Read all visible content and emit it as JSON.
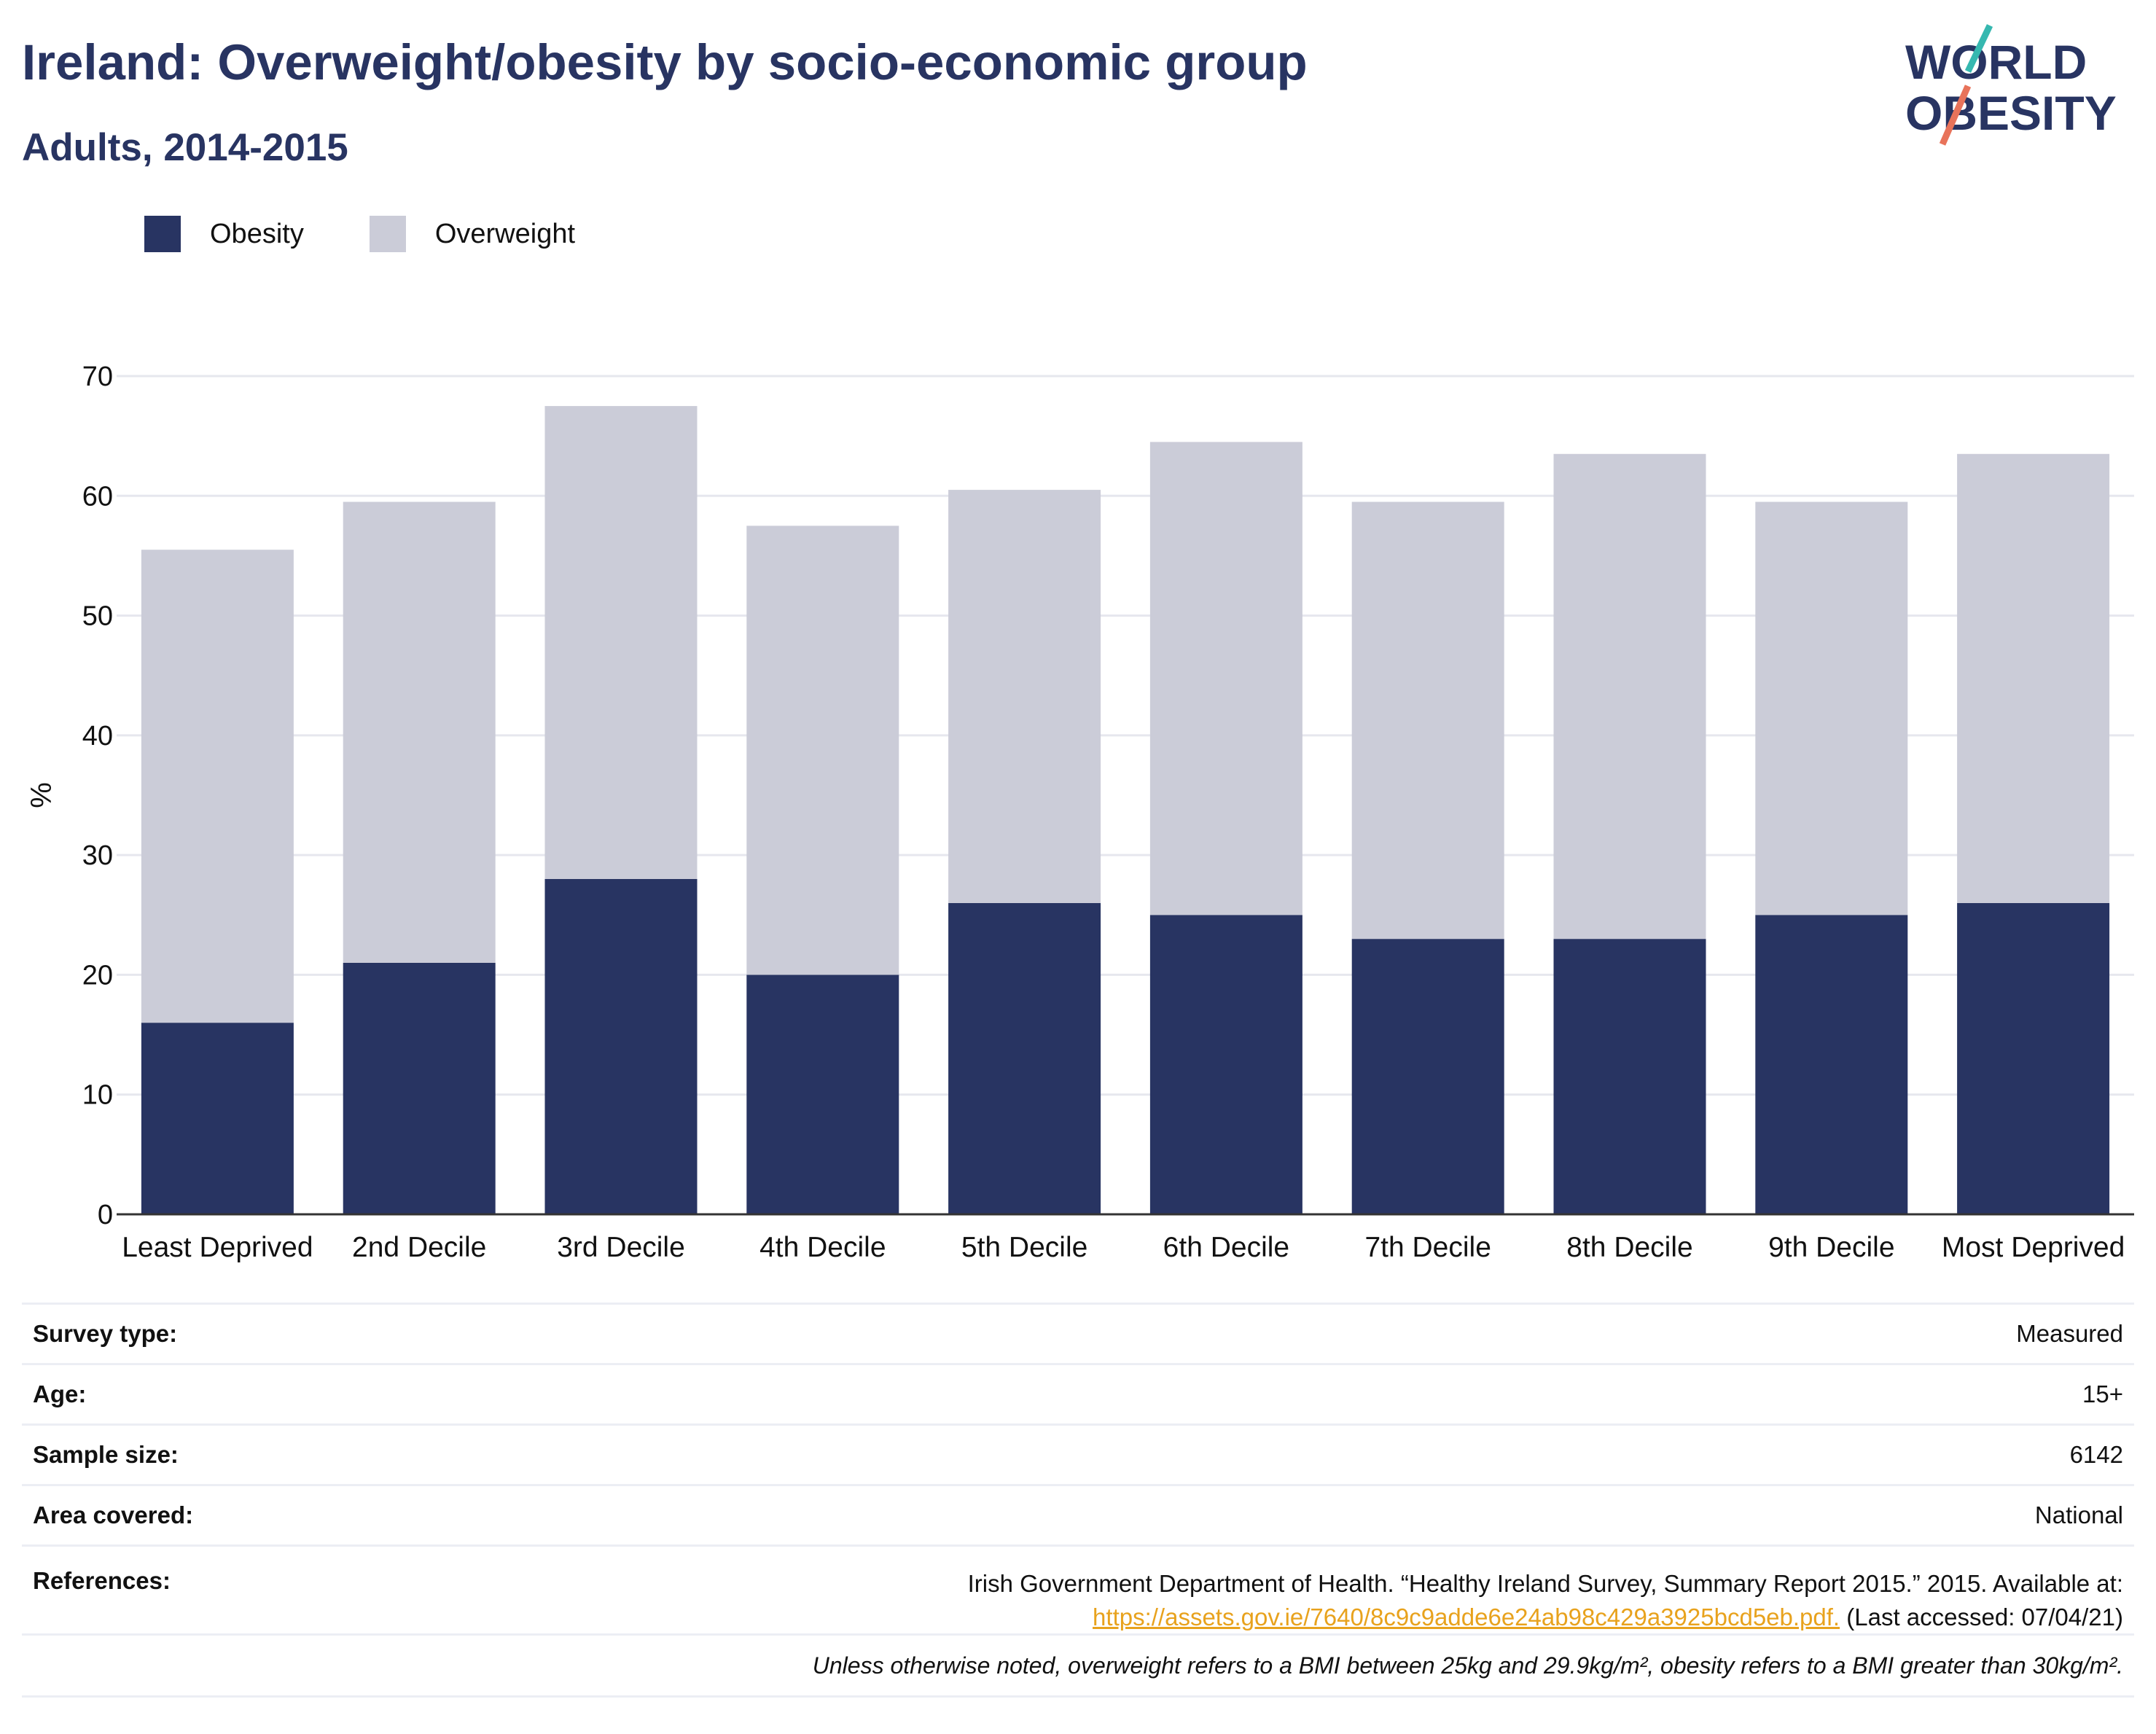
{
  "title": "Ireland: Overweight/obesity by socio-economic group",
  "subtitle": "Adults, 2014-2015",
  "logo": {
    "line1": "WORLD",
    "line2": "OBESITY"
  },
  "colors": {
    "obesity": "#283462",
    "overweight": "#cbccd8",
    "accent_red": "#e8735a",
    "accent_teal": "#36b8b0",
    "link": "#e8a21d"
  },
  "legend": [
    {
      "label": "Obesity",
      "color": "#283462"
    },
    {
      "label": "Overweight",
      "color": "#cbccd8"
    }
  ],
  "chart_data": {
    "type": "bar",
    "stacked": true,
    "categories": [
      "Least Deprived",
      "2nd Decile",
      "3rd Decile",
      "4th Decile",
      "5th Decile",
      "6th Decile",
      "7th Decile",
      "8th Decile",
      "9th Decile",
      "Most Deprived"
    ],
    "series": [
      {
        "name": "Obesity",
        "values": [
          16,
          21,
          28,
          20,
          26,
          25,
          23,
          23,
          25,
          26
        ]
      },
      {
        "name": "Overweight",
        "values": [
          39.5,
          38.5,
          39.5,
          37.5,
          34.5,
          39.5,
          36.5,
          40.5,
          34.5,
          37.5
        ]
      }
    ],
    "totals": [
      55.5,
      59.5,
      67.5,
      57.5,
      60.5,
      64.5,
      59.5,
      63.5,
      59.5,
      63.5
    ],
    "ylabel": "%",
    "ylim": [
      0,
      70
    ],
    "yticks": [
      0,
      10,
      20,
      30,
      40,
      50,
      60,
      70
    ],
    "grid": true,
    "legend_position": "top-left"
  },
  "info": {
    "survey_type": {
      "label": "Survey type:",
      "value": "Measured"
    },
    "age": {
      "label": "Age:",
      "value": "15+"
    },
    "sample_size": {
      "label": "Sample size:",
      "value": "6142"
    },
    "area": {
      "label": "Area covered:",
      "value": "National"
    },
    "references": {
      "label": "References:",
      "text1": "Irish Government Department of Health. “Healthy Ireland Survey, Summary Report 2015.” 2015. Available at:",
      "link": "https://assets.gov.ie/7640/8c9c9adde6e24ab98c429a3925bcd5eb.pdf.",
      "text2": "(Last accessed: 07/04/21)"
    },
    "note": "Unless otherwise noted, overweight refers to a BMI between 25kg and 29.9kg/m², obesity refers to a BMI greater than 30kg/m²."
  }
}
